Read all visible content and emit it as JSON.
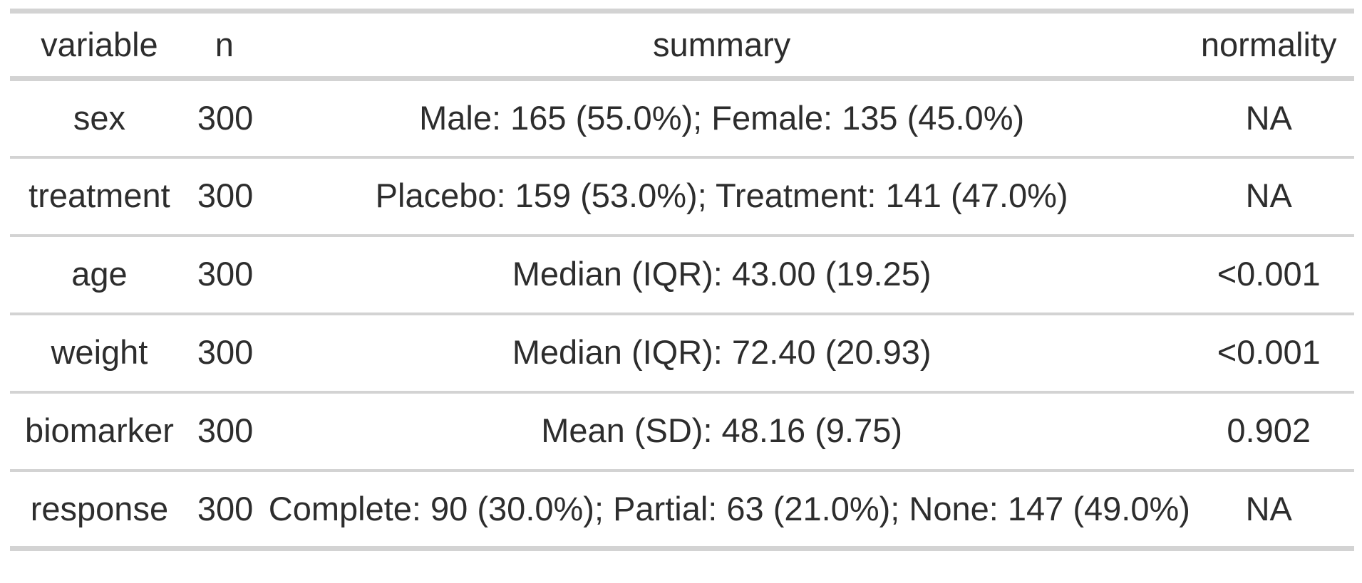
{
  "colors": {
    "background": "#ffffff",
    "rule_gray": "#d3d3d3",
    "text": "#2d2d2d"
  },
  "chart_data": {
    "type": "table",
    "title": "",
    "columns": [
      "variable",
      "n",
      "summary",
      "normality"
    ],
    "rows": [
      {
        "variable": "sex",
        "n": "300",
        "summary": "Male: 165 (55.0%); Female: 135 (45.0%)",
        "normality": "NA"
      },
      {
        "variable": "treatment",
        "n": "300",
        "summary": "Placebo: 159 (53.0%); Treatment: 141 (47.0%)",
        "normality": "NA"
      },
      {
        "variable": "age",
        "n": "300",
        "summary": "Median (IQR): 43.00 (19.25)",
        "normality": "<0.001"
      },
      {
        "variable": "weight",
        "n": "300",
        "summary": "Median (IQR): 72.40 (20.93)",
        "normality": "<0.001"
      },
      {
        "variable": "biomarker",
        "n": "300",
        "summary": "Mean (SD): 48.16 (9.75)",
        "normality": "0.902"
      },
      {
        "variable": "response",
        "n": "300",
        "summary": "Complete: 90 (30.0%); Partial: 63 (21.0%); None: 147 (49.0%)",
        "normality": "NA"
      }
    ]
  }
}
